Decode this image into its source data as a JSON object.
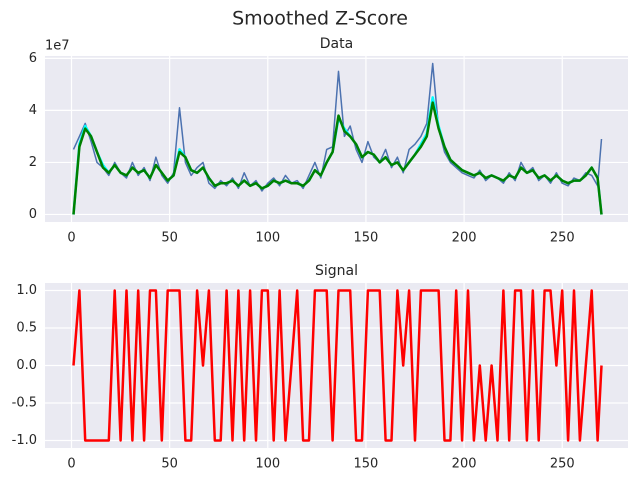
{
  "title": "Smoothed Z-Score",
  "chart_data": [
    {
      "type": "line",
      "title": "Data",
      "offset_label": "1e7",
      "x": [
        1,
        4,
        7,
        10,
        13,
        16,
        19,
        22,
        25,
        28,
        31,
        34,
        37,
        40,
        43,
        46,
        49,
        52,
        55,
        58,
        61,
        64,
        67,
        70,
        73,
        76,
        79,
        82,
        85,
        88,
        91,
        94,
        97,
        100,
        103,
        106,
        109,
        112,
        115,
        118,
        121,
        124,
        127,
        130,
        133,
        136,
        139,
        142,
        145,
        148,
        151,
        154,
        157,
        160,
        163,
        166,
        169,
        172,
        175,
        178,
        181,
        184,
        187,
        190,
        193,
        196,
        199,
        202,
        205,
        208,
        211,
        214,
        217,
        220,
        223,
        226,
        229,
        232,
        235,
        238,
        241,
        244,
        247,
        250,
        253,
        256,
        259,
        262,
        265,
        268,
        270
      ],
      "series": [
        {
          "color": "#4c72b0",
          "values": [
            2.5,
            3.0,
            3.5,
            2.8,
            2.0,
            1.8,
            1.5,
            2.0,
            1.6,
            1.4,
            2.0,
            1.5,
            1.8,
            1.3,
            2.2,
            1.5,
            1.2,
            1.6,
            4.1,
            2.0,
            1.5,
            1.8,
            2.0,
            1.2,
            1.0,
            1.3,
            1.1,
            1.4,
            1.0,
            1.6,
            1.1,
            1.3,
            0.9,
            1.2,
            1.4,
            1.1,
            1.5,
            1.2,
            1.3,
            1.0,
            1.5,
            2.0,
            1.4,
            2.5,
            2.6,
            5.5,
            3.0,
            3.4,
            2.5,
            2.0,
            2.8,
            2.2,
            2.0,
            2.5,
            1.8,
            2.2,
            1.6,
            2.5,
            2.7,
            3.0,
            3.5,
            5.8,
            3.3,
            2.4,
            2.0,
            1.8,
            1.6,
            1.5,
            1.4,
            1.7,
            1.3,
            1.5,
            1.4,
            1.2,
            1.6,
            1.3,
            2.0,
            1.6,
            1.8,
            1.3,
            1.5,
            1.2,
            1.6,
            1.2,
            1.1,
            1.4,
            1.3,
            1.6,
            1.5,
            1.1,
            2.9
          ]
        },
        {
          "color": "#00ffff",
          "values": [
            0,
            2.7,
            3.4,
            3.0,
            2.4,
            1.9,
            1.6,
            1.9,
            1.6,
            1.5,
            1.8,
            1.6,
            1.7,
            1.4,
            1.9,
            1.6,
            1.3,
            1.5,
            2.5,
            2.2,
            1.7,
            1.6,
            1.8,
            1.4,
            1.1,
            1.2,
            1.2,
            1.3,
            1.1,
            1.3,
            1.1,
            1.2,
            1.0,
            1.1,
            1.3,
            1.2,
            1.3,
            1.2,
            1.2,
            1.1,
            1.3,
            1.7,
            1.5,
            2.0,
            2.4,
            3.7,
            3.3,
            3.0,
            2.7,
            2.2,
            2.4,
            2.3,
            2.0,
            2.2,
            1.9,
            2.0,
            1.7,
            2.0,
            2.3,
            2.7,
            3.1,
            4.5,
            3.4,
            2.6,
            2.1,
            1.9,
            1.7,
            1.6,
            1.5,
            1.6,
            1.4,
            1.5,
            1.4,
            1.3,
            1.5,
            1.4,
            1.8,
            1.6,
            1.7,
            1.4,
            1.5,
            1.3,
            1.5,
            1.3,
            1.2,
            1.3,
            1.3,
            1.5,
            1.8,
            1.4,
            0
          ]
        },
        {
          "color": "#008000",
          "values": [
            0,
            2.6,
            3.3,
            3.0,
            2.4,
            1.8,
            1.6,
            1.9,
            1.6,
            1.5,
            1.8,
            1.6,
            1.7,
            1.4,
            1.9,
            1.6,
            1.3,
            1.5,
            2.4,
            2.2,
            1.7,
            1.6,
            1.8,
            1.4,
            1.1,
            1.2,
            1.2,
            1.3,
            1.1,
            1.3,
            1.1,
            1.2,
            1.0,
            1.1,
            1.3,
            1.2,
            1.3,
            1.2,
            1.2,
            1.1,
            1.3,
            1.7,
            1.5,
            2.0,
            2.4,
            3.8,
            3.2,
            3.0,
            2.7,
            2.2,
            2.4,
            2.3,
            2.0,
            2.2,
            1.9,
            2.0,
            1.7,
            2.0,
            2.3,
            2.6,
            3.0,
            4.3,
            3.3,
            2.6,
            2.1,
            1.9,
            1.7,
            1.6,
            1.5,
            1.6,
            1.4,
            1.5,
            1.4,
            1.3,
            1.5,
            1.4,
            1.8,
            1.6,
            1.7,
            1.4,
            1.5,
            1.3,
            1.5,
            1.3,
            1.2,
            1.3,
            1.3,
            1.5,
            1.8,
            1.4,
            0
          ]
        }
      ],
      "xlim": [
        -13.5,
        283.5
      ],
      "xticks": [
        0,
        50,
        100,
        150,
        200,
        250
      ],
      "ylim": [
        -0.29,
        6.09
      ],
      "yticks": [
        0,
        2,
        4,
        6
      ],
      "grid": true
    },
    {
      "type": "line",
      "title": "Signal",
      "x": [
        1,
        4,
        7,
        10,
        13,
        16,
        19,
        22,
        25,
        28,
        31,
        34,
        37,
        40,
        43,
        46,
        49,
        52,
        55,
        58,
        61,
        64,
        67,
        70,
        73,
        76,
        79,
        82,
        85,
        88,
        91,
        94,
        97,
        100,
        103,
        106,
        109,
        112,
        115,
        118,
        121,
        124,
        127,
        130,
        133,
        136,
        139,
        142,
        145,
        148,
        151,
        154,
        157,
        160,
        163,
        166,
        169,
        172,
        175,
        178,
        181,
        184,
        187,
        190,
        193,
        196,
        199,
        202,
        205,
        208,
        211,
        214,
        217,
        220,
        223,
        226,
        229,
        232,
        235,
        238,
        241,
        244,
        247,
        250,
        253,
        256,
        259,
        262,
        265,
        268,
        270
      ],
      "series": [
        {
          "color": "#ff0000",
          "values": [
            0,
            1,
            -1,
            -1,
            -1,
            -1,
            -1,
            1,
            -1,
            1,
            -1,
            1,
            -1,
            1,
            1,
            -1,
            1,
            1,
            1,
            -1,
            -1,
            1,
            0,
            1,
            -1,
            -1,
            1,
            -1,
            1,
            -1,
            1,
            -1,
            1,
            1,
            -1,
            1,
            -1,
            0,
            1,
            -1,
            -1,
            1,
            1,
            1,
            -1,
            1,
            1,
            1,
            -1,
            -1,
            1,
            1,
            1,
            -1,
            -1,
            1,
            0,
            1,
            -1,
            1,
            1,
            1,
            1,
            -1,
            -1,
            1,
            -1,
            1,
            -1,
            0,
            -1,
            0,
            -1,
            1,
            -1,
            1,
            1,
            -1,
            1,
            -1,
            1,
            1,
            0,
            1,
            -1,
            1,
            -1,
            0,
            1,
            -1,
            0
          ]
        }
      ],
      "xlim": [
        -13.5,
        283.5
      ],
      "xticks": [
        0,
        50,
        100,
        150,
        200,
        250
      ],
      "ylim": [
        -1.1,
        1.1
      ],
      "yticks": [
        {
          "value": 1,
          "label": "1.0"
        },
        0.5,
        {
          "value": 0,
          "label": "0.0"
        },
        -0.5,
        {
          "value": -1,
          "label": "-1.0"
        }
      ],
      "grid": true
    }
  ]
}
